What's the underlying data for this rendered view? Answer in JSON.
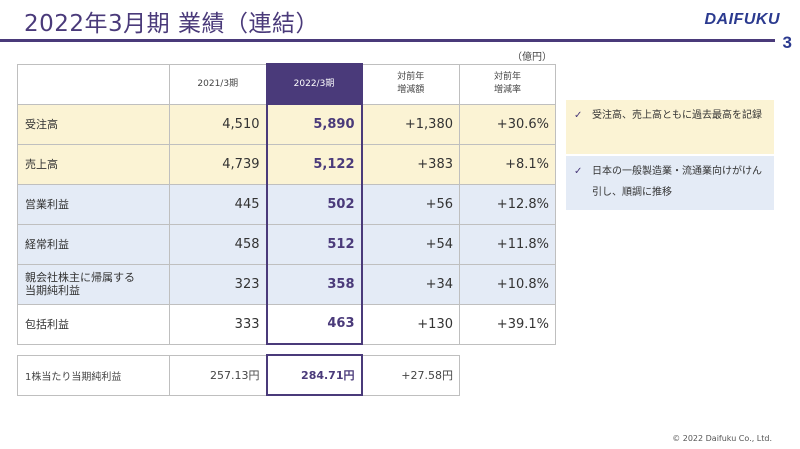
{
  "header": {
    "title": "2022年3月期  業績（連結）",
    "logo": "DAIFUKU",
    "page_number": "3"
  },
  "unit": "（億円）",
  "table": {
    "columns": [
      "",
      "2021/3期",
      "2022/3期",
      "対前年\n増減額",
      "対前年\n増減率"
    ],
    "rows": [
      {
        "label": "受注高",
        "v2021": "4,510",
        "v2022": "5,890",
        "diff": "+1,380",
        "rate": "+30.6%",
        "tone": "yellow"
      },
      {
        "label": "売上高",
        "v2021": "4,739",
        "v2022": "5,122",
        "diff": "+383",
        "rate": "+8.1%",
        "tone": "yellow"
      },
      {
        "label": "営業利益",
        "v2021": "445",
        "v2022": "502",
        "diff": "+56",
        "rate": "+12.8%",
        "tone": "blue"
      },
      {
        "label": "経常利益",
        "v2021": "458",
        "v2022": "512",
        "diff": "+54",
        "rate": "+11.8%",
        "tone": "blue"
      },
      {
        "label": "親会社株主に帰属する\n当期純利益",
        "v2021": "323",
        "v2022": "358",
        "diff": "+34",
        "rate": "+10.8%",
        "tone": "blue"
      },
      {
        "label": "包括利益",
        "v2021": "333",
        "v2022": "463",
        "diff": "+130",
        "rate": "+39.1%",
        "tone": "white"
      }
    ]
  },
  "eps": {
    "label": "1株当たり当期純利益",
    "v2021": "257.13円",
    "v2022": "284.71円",
    "diff": "+27.58円"
  },
  "notes": [
    {
      "text": "受注高、売上高ともに過去最高を記録",
      "tone": "yellow"
    },
    {
      "text": "日本の一般製造業・流通業向けがけん引し、順調に推移",
      "tone": "blue"
    }
  ],
  "checkmark": "✓",
  "copyright": "© 2022 Daifuku Co., Ltd."
}
